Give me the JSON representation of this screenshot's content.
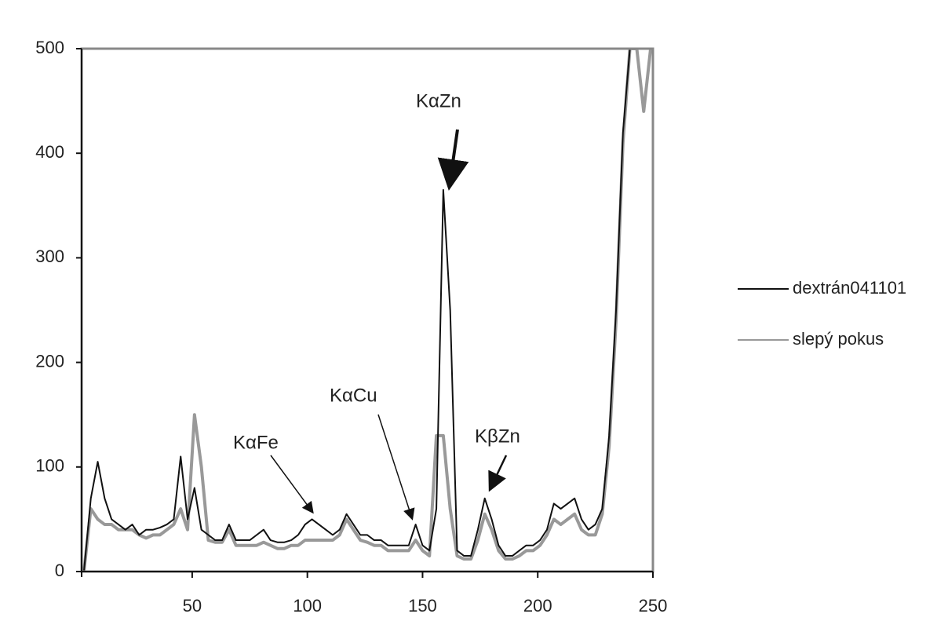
{
  "chart_data": {
    "type": "line",
    "x": [
      3,
      6,
      9,
      12,
      15,
      18,
      21,
      24,
      27,
      30,
      33,
      36,
      39,
      42,
      45,
      48,
      51,
      54,
      57,
      60,
      63,
      66,
      69,
      72,
      75,
      78,
      81,
      84,
      87,
      90,
      93,
      96,
      99,
      102,
      105,
      108,
      111,
      114,
      117,
      120,
      123,
      126,
      129,
      132,
      135,
      138,
      141,
      144,
      147,
      150,
      153,
      156,
      159,
      162,
      165,
      168,
      171,
      174,
      177,
      180,
      183,
      186,
      189,
      192,
      195,
      198,
      201,
      204,
      207,
      210,
      213,
      216,
      219,
      222,
      225,
      228,
      231,
      234,
      237,
      240,
      243,
      246,
      249
    ],
    "series": [
      {
        "name": "dextrán041101",
        "color": "#111111",
        "width": 2,
        "values": [
          0,
          70,
          105,
          70,
          50,
          45,
          40,
          45,
          35,
          40,
          40,
          42,
          45,
          50,
          110,
          50,
          80,
          40,
          35,
          30,
          30,
          45,
          30,
          30,
          30,
          35,
          40,
          30,
          28,
          28,
          30,
          35,
          45,
          50,
          45,
          40,
          35,
          40,
          55,
          45,
          35,
          35,
          30,
          30,
          25,
          25,
          25,
          25,
          45,
          25,
          20,
          60,
          365,
          250,
          20,
          15,
          15,
          40,
          70,
          50,
          25,
          15,
          15,
          20,
          25,
          25,
          30,
          40,
          65,
          60,
          65,
          70,
          50,
          40,
          45,
          60,
          130,
          250,
          420,
          500,
          500,
          500,
          500
        ]
      },
      {
        "name": "slepý pokus",
        "color": "#999999",
        "width": 4,
        "values": [
          0,
          60,
          50,
          45,
          45,
          40,
          40,
          40,
          35,
          32,
          35,
          35,
          40,
          45,
          60,
          40,
          150,
          100,
          30,
          28,
          28,
          40,
          25,
          25,
          25,
          25,
          28,
          25,
          22,
          22,
          25,
          25,
          30,
          30,
          30,
          30,
          30,
          35,
          50,
          40,
          30,
          28,
          25,
          25,
          20,
          20,
          20,
          20,
          30,
          20,
          15,
          130,
          130,
          60,
          15,
          12,
          12,
          30,
          55,
          40,
          20,
          12,
          12,
          15,
          20,
          20,
          25,
          35,
          50,
          45,
          50,
          55,
          40,
          35,
          35,
          55,
          120,
          240,
          410,
          500,
          500,
          440,
          500
        ]
      }
    ],
    "annotations": [
      "KαZn",
      "KαCu",
      "KαFe",
      "KβZn"
    ],
    "xlim": [
      2,
      250
    ],
    "xticks": [
      50,
      100,
      150,
      200,
      250
    ],
    "ylim": [
      0,
      500
    ],
    "yticks": [
      0,
      100,
      200,
      300,
      400,
      500
    ]
  }
}
